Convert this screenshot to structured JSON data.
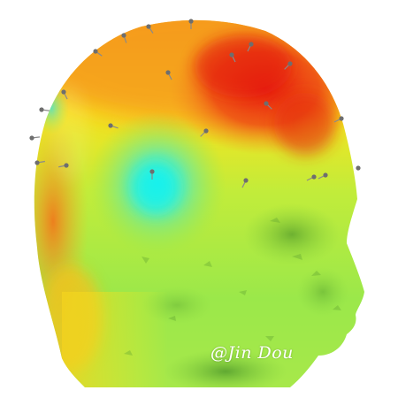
{
  "figure": {
    "subject": "head-topographic-map",
    "colors": {
      "red": "#e81e10",
      "orange": "#f5941c",
      "yellow": "#f8ee1e",
      "green": "#9be84a",
      "cyan": "#22e6e0",
      "dark_green": "#3f8a26"
    },
    "electrode_count": 22
  },
  "watermark": {
    "text": "@Jin Dou"
  }
}
